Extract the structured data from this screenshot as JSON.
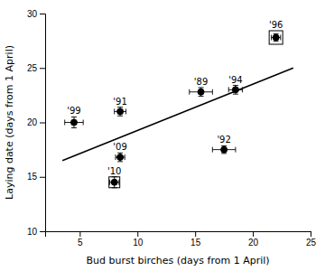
{
  "chart_data": {
    "type": "scatter",
    "xlabel": "Bud burst birches (days from 1 April)",
    "ylabel": "Laying date (days from 1 April)",
    "xlim": [
      2,
      25
    ],
    "ylim": [
      10,
      30
    ],
    "xticks": [
      5,
      10,
      15,
      20,
      25
    ],
    "yticks": [
      10,
      15,
      20,
      25,
      30
    ],
    "series": [
      {
        "type": "line",
        "color": "#000000",
        "x": [
          3.5,
          23.5
        ],
        "values": [
          16.5,
          25.0
        ]
      },
      {
        "type": "scatter",
        "color": "#000000",
        "labels": [
          "'96",
          "'89",
          "'94",
          "'99",
          "'91",
          "'09",
          "'10",
          "'92"
        ],
        "x": [
          22.0,
          15.5,
          18.5,
          4.5,
          8.5,
          8.5,
          8.0,
          17.5
        ],
        "values": [
          27.8,
          22.8,
          23.0,
          20.0,
          21.0,
          16.8,
          14.5,
          17.5
        ],
        "xerr": [
          0.4,
          1.0,
          0.6,
          0.8,
          0.5,
          0.4,
          0.4,
          1.0
        ],
        "yerr": [
          0.35,
          0.4,
          0.4,
          0.5,
          0.4,
          0.4,
          0.5,
          0.35
        ],
        "markers": [
          "square",
          "circle",
          "circle",
          "circle",
          "circle",
          "circle",
          "square",
          "circle"
        ]
      }
    ]
  }
}
